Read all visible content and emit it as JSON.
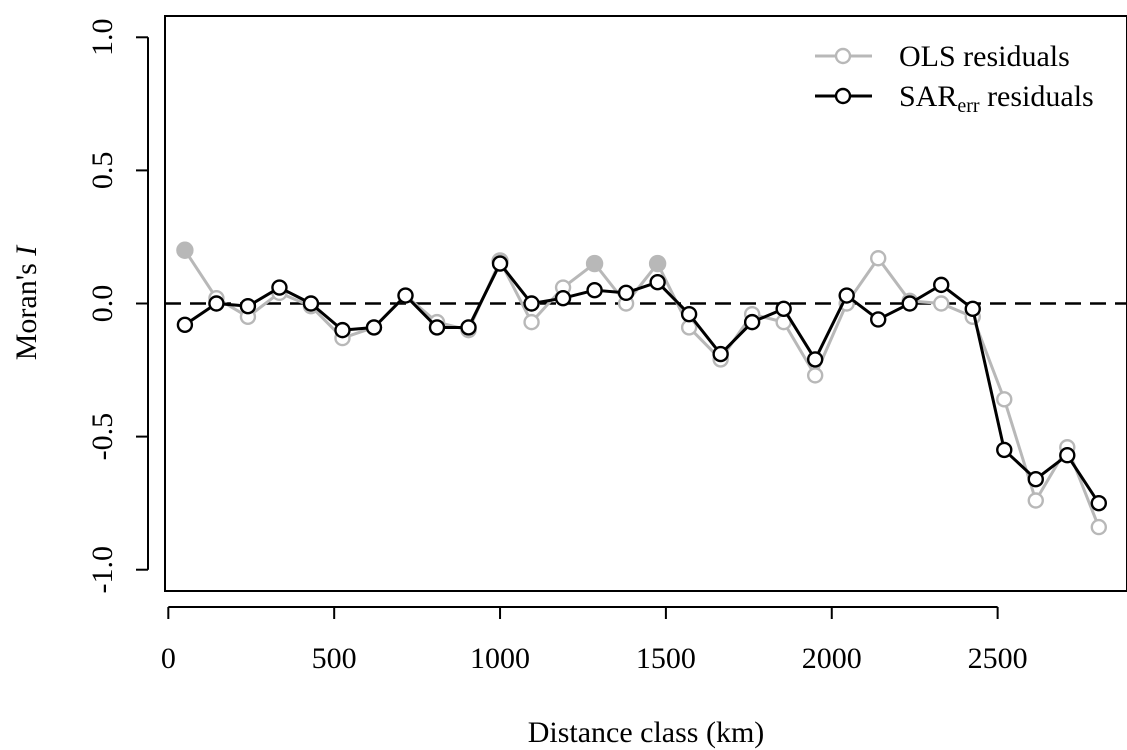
{
  "chart_data": {
    "type": "line",
    "title": "",
    "xlabel": "Distance class (km)",
    "ylabel_main": "Moran's ",
    "ylabel_italic": "I",
    "xlim": [
      -10,
      2890
    ],
    "ylim": [
      -1.08,
      1.08
    ],
    "x_ticks": [
      0,
      500,
      1000,
      1500,
      2000,
      2500
    ],
    "x_tick_labels": [
      "0",
      "500",
      "1000",
      "1500",
      "2000",
      "2500"
    ],
    "y_ticks": [
      -1.0,
      -0.5,
      0.0,
      0.5,
      1.0
    ],
    "y_tick_labels": [
      "-1.0",
      "-0.5",
      "0.0",
      "0.5",
      "1.0"
    ],
    "reference_line": {
      "y": 0.0,
      "style": "dashed"
    },
    "legend": {
      "position": "top-right",
      "entries": [
        {
          "label_main": "OLS residuals",
          "label_sub": "",
          "label_suffix": "",
          "color": "#b8b8b8"
        },
        {
          "label_main": "SAR",
          "label_sub": "err",
          "label_suffix": " residuals",
          "color": "#000000"
        }
      ]
    },
    "x": [
      50,
      145,
      240,
      335,
      430,
      525,
      620,
      715,
      810,
      905,
      1000,
      1095,
      1190,
      1285,
      1380,
      1475,
      1570,
      1665,
      1760,
      1855,
      1950,
      2045,
      2140,
      2235,
      2330,
      2425,
      2520,
      2615,
      2710,
      2805
    ],
    "series": [
      {
        "name": "OLS residuals",
        "color": "#b8b8b8",
        "values": [
          0.2,
          0.02,
          -0.05,
          0.04,
          -0.01,
          -0.13,
          -0.09,
          0.03,
          -0.07,
          -0.1,
          0.16,
          -0.07,
          0.06,
          0.15,
          0.0,
          0.15,
          -0.09,
          -0.21,
          -0.04,
          -0.07,
          -0.27,
          0.0,
          0.17,
          0.01,
          0.0,
          -0.05,
          -0.36,
          -0.74,
          -0.54,
          -0.84
        ],
        "filled": [
          true,
          false,
          false,
          false,
          false,
          false,
          false,
          false,
          false,
          false,
          true,
          false,
          false,
          true,
          false,
          true,
          false,
          false,
          false,
          false,
          false,
          false,
          false,
          false,
          false,
          false,
          false,
          false,
          false,
          false
        ]
      },
      {
        "name": "SARerr residuals",
        "color": "#000000",
        "values": [
          -0.08,
          0.0,
          -0.01,
          0.06,
          0.0,
          -0.1,
          -0.09,
          0.03,
          -0.09,
          -0.09,
          0.15,
          0.0,
          0.02,
          0.05,
          0.04,
          0.08,
          -0.04,
          -0.19,
          -0.07,
          -0.02,
          -0.21,
          0.03,
          -0.06,
          0.0,
          0.07,
          -0.02,
          -0.55,
          -0.66,
          -0.57,
          -0.75
        ],
        "filled": [
          false,
          false,
          false,
          false,
          false,
          false,
          false,
          false,
          false,
          false,
          false,
          false,
          false,
          false,
          false,
          false,
          false,
          false,
          false,
          false,
          false,
          false,
          false,
          false,
          false,
          false,
          false,
          false,
          false,
          false
        ]
      }
    ]
  }
}
